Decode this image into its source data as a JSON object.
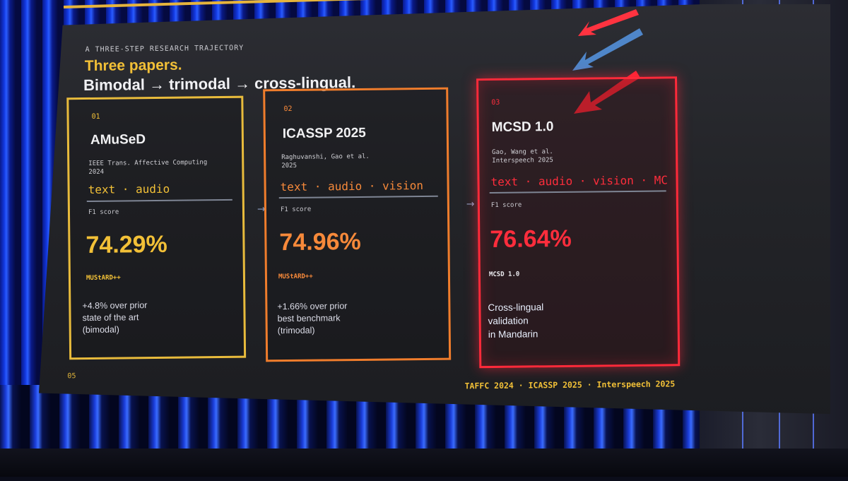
{
  "slide": {
    "eyebrow": "A THREE-STEP RESEARCH TRAJECTORY",
    "title_line1": "Three papers.",
    "title_line2": "Bimodal → trimodal → cross-lingual.",
    "page_number": "05",
    "footer": "TAFFC 2024 · ICASSP 2025 · Interspeech 2025"
  },
  "cards": [
    {
      "number": "01",
      "name": "AMuSeD",
      "meta": "IEEE Trans. Affective Computing\n2024",
      "modalities": "text · audio",
      "metric_label": "F1 score",
      "score": "74.29%",
      "dataset": "MUStARD++",
      "note": "+4.8% over prior\nstate of the art\n(bimodal)"
    },
    {
      "number": "02",
      "name": "ICASSP 2025",
      "meta": "Raghuvanshi, Gao et al.\n2025",
      "modalities": "text · audio · vision",
      "metric_label": "F1 score",
      "score": "74.96%",
      "dataset": "MUStARD++",
      "note": "+1.66% over prior\nbest benchmark\n(trimodal)"
    },
    {
      "number": "03",
      "name": "MCSD 1.0",
      "meta": "Gao, Wang et al.\nInterspeech 2025",
      "modalities": "text · audio · vision · MC",
      "metric_label": "F1 score",
      "score": "76.64%",
      "dataset": "MCSD 1.0",
      "note": "Cross-lingual\nvalidation\nin Mandarin"
    }
  ],
  "arrows": {
    "glyph": "→"
  },
  "colors": {
    "accent_yellow": "#f2c037",
    "accent_orange": "#f7893a",
    "accent_red": "#ff2d3c",
    "led_blue": "#2a5cff"
  }
}
